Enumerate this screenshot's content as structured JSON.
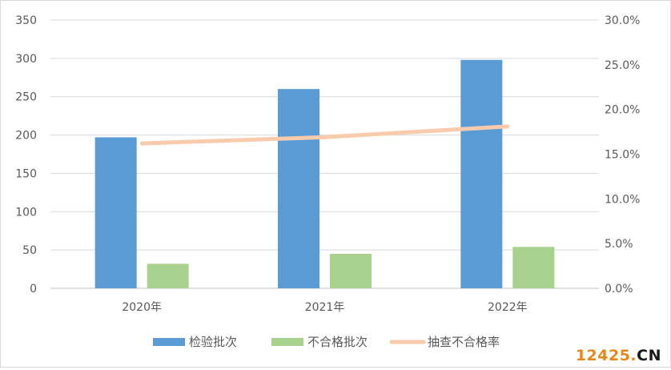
{
  "chart_data": {
    "type": "bar",
    "categories": [
      "2020年",
      "2021年",
      "2022年"
    ],
    "series": [
      {
        "name": "检验批次",
        "kind": "bar",
        "axis": "left",
        "color": "#5B9BD5",
        "values": [
          197,
          260,
          298
        ]
      },
      {
        "name": "不合格批次",
        "kind": "bar",
        "axis": "left",
        "color": "#A9D18E",
        "values": [
          32,
          45,
          54
        ]
      },
      {
        "name": "抽查不合格率",
        "kind": "line",
        "axis": "right",
        "color": "#F8CBAD",
        "values": [
          0.162,
          0.169,
          0.181
        ]
      }
    ],
    "y_left": {
      "min": 0,
      "max": 350,
      "ticks": [
        "0",
        "50",
        "100",
        "150",
        "200",
        "250",
        "300",
        "350"
      ]
    },
    "y_right": {
      "min": 0,
      "max": 0.3,
      "ticks": [
        "0.0%",
        "5.0%",
        "10.0%",
        "15.0%",
        "20.0%",
        "25.0%",
        "30.0%"
      ]
    },
    "grid": true,
    "legend_position": "bottom"
  },
  "watermark": {
    "digits": "12425",
    "dot": ".",
    "suffix": "CN",
    "digits_color": "#e8861a",
    "dot_color": "#e8861a",
    "suffix_color": "#1a1a1a"
  }
}
